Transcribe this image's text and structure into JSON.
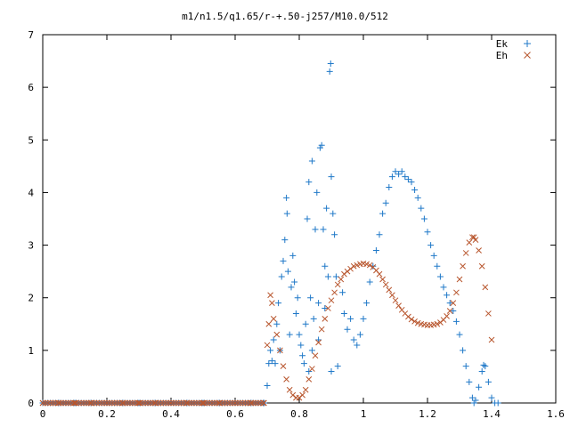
{
  "chart_data": {
    "type": "scatter",
    "title": "m1/n1.5/q1.65/r-+.50-j257/M10.0/512",
    "xlabel": "",
    "ylabel": "",
    "xlim": [
      0,
      1.6
    ],
    "ylim": [
      0,
      7
    ],
    "grid": false,
    "legend_position": "top-right",
    "x_ticks": [
      "0",
      "0.2",
      "0.4",
      "0.6",
      "0.8",
      "1",
      "1.2",
      "1.4",
      "1.6"
    ],
    "y_ticks": [
      "0",
      "1",
      "2",
      "3",
      "4",
      "5",
      "6",
      "7"
    ],
    "series": [
      {
        "name": "Ek",
        "marker": "plus",
        "color": "#1f78c8",
        "points": [
          [
            0.0,
            0
          ],
          [
            0.05,
            0
          ],
          [
            0.1,
            0
          ],
          [
            0.15,
            0
          ],
          [
            0.2,
            0
          ],
          [
            0.25,
            0
          ],
          [
            0.3,
            0
          ],
          [
            0.35,
            0
          ],
          [
            0.4,
            0
          ],
          [
            0.45,
            0
          ],
          [
            0.5,
            0
          ],
          [
            0.55,
            0
          ],
          [
            0.6,
            0
          ],
          [
            0.65,
            0
          ],
          [
            0.69,
            0
          ],
          [
            0.7,
            0.33
          ],
          [
            0.705,
            0.75
          ],
          [
            0.71,
            1.0
          ],
          [
            0.715,
            0.8
          ],
          [
            0.72,
            1.2
          ],
          [
            0.725,
            0.75
          ],
          [
            0.73,
            1.5
          ],
          [
            0.735,
            1.9
          ],
          [
            0.74,
            1.0
          ],
          [
            0.745,
            2.4
          ],
          [
            0.75,
            2.7
          ],
          [
            0.755,
            3.1
          ],
          [
            0.76,
            3.9
          ],
          [
            0.762,
            3.6
          ],
          [
            0.765,
            2.5
          ],
          [
            0.77,
            1.3
          ],
          [
            0.775,
            2.2
          ],
          [
            0.78,
            2.8
          ],
          [
            0.785,
            2.3
          ],
          [
            0.79,
            1.7
          ],
          [
            0.795,
            2.0
          ],
          [
            0.8,
            1.3
          ],
          [
            0.805,
            1.1
          ],
          [
            0.81,
            0.9
          ],
          [
            0.815,
            0.75
          ],
          [
            0.82,
            1.5
          ],
          [
            0.825,
            3.5
          ],
          [
            0.83,
            4.2
          ],
          [
            0.835,
            2.0
          ],
          [
            0.84,
            4.6
          ],
          [
            0.845,
            1.6
          ],
          [
            0.85,
            3.3
          ],
          [
            0.855,
            4.0
          ],
          [
            0.86,
            1.9
          ],
          [
            0.865,
            4.85
          ],
          [
            0.87,
            4.9
          ],
          [
            0.875,
            3.3
          ],
          [
            0.88,
            2.6
          ],
          [
            0.885,
            3.7
          ],
          [
            0.89,
            2.4
          ],
          [
            0.895,
            6.3
          ],
          [
            0.898,
            6.45
          ],
          [
            0.9,
            4.3
          ],
          [
            0.905,
            3.6
          ],
          [
            0.91,
            3.2
          ],
          [
            0.915,
            2.4
          ],
          [
            0.83,
            0.6
          ],
          [
            0.84,
            1.0
          ],
          [
            0.86,
            1.2
          ],
          [
            0.88,
            1.8
          ],
          [
            0.9,
            0.6
          ],
          [
            0.92,
            0.7
          ],
          [
            0.935,
            2.1
          ],
          [
            0.94,
            1.7
          ],
          [
            0.95,
            1.4
          ],
          [
            0.96,
            1.6
          ],
          [
            0.97,
            1.2
          ],
          [
            0.98,
            1.1
          ],
          [
            0.99,
            1.3
          ],
          [
            1.0,
            1.6
          ],
          [
            1.01,
            1.9
          ],
          [
            1.02,
            2.3
          ],
          [
            1.03,
            2.6
          ],
          [
            1.04,
            2.9
          ],
          [
            1.05,
            3.2
          ],
          [
            1.06,
            3.6
          ],
          [
            1.07,
            3.8
          ],
          [
            1.08,
            4.1
          ],
          [
            1.09,
            4.3
          ],
          [
            1.1,
            4.4
          ],
          [
            1.11,
            4.35
          ],
          [
            1.12,
            4.4
          ],
          [
            1.13,
            4.3
          ],
          [
            1.14,
            4.25
          ],
          [
            1.15,
            4.2
          ],
          [
            1.16,
            4.05
          ],
          [
            1.17,
            3.9
          ],
          [
            1.18,
            3.7
          ],
          [
            1.19,
            3.5
          ],
          [
            1.2,
            3.25
          ],
          [
            1.21,
            3.0
          ],
          [
            1.22,
            2.8
          ],
          [
            1.23,
            2.6
          ],
          [
            1.24,
            2.4
          ],
          [
            1.25,
            2.2
          ],
          [
            1.26,
            2.05
          ],
          [
            1.27,
            1.9
          ],
          [
            1.28,
            1.75
          ],
          [
            1.29,
            1.55
          ],
          [
            1.3,
            1.3
          ],
          [
            1.31,
            1.0
          ],
          [
            1.32,
            0.7
          ],
          [
            1.33,
            0.4
          ],
          [
            1.34,
            0.1
          ],
          [
            1.345,
            0
          ],
          [
            1.35,
            0.05
          ],
          [
            1.36,
            0.3
          ],
          [
            1.37,
            0.6
          ],
          [
            1.375,
            0.72
          ],
          [
            1.38,
            0.7
          ],
          [
            1.39,
            0.4
          ],
          [
            1.4,
            0.1
          ],
          [
            1.41,
            0
          ],
          [
            1.42,
            0
          ]
        ]
      },
      {
        "name": "Eh",
        "marker": "cross",
        "color": "#b8562e",
        "points": [
          [
            0.0,
            0
          ],
          [
            0.05,
            0
          ],
          [
            0.1,
            0
          ],
          [
            0.15,
            0
          ],
          [
            0.2,
            0
          ],
          [
            0.25,
            0
          ],
          [
            0.3,
            0
          ],
          [
            0.35,
            0
          ],
          [
            0.4,
            0
          ],
          [
            0.45,
            0
          ],
          [
            0.5,
            0
          ],
          [
            0.55,
            0
          ],
          [
            0.6,
            0
          ],
          [
            0.65,
            0
          ],
          [
            0.69,
            0
          ],
          [
            0.7,
            1.1
          ],
          [
            0.705,
            1.5
          ],
          [
            0.71,
            2.05
          ],
          [
            0.715,
            1.9
          ],
          [
            0.72,
            1.6
          ],
          [
            0.73,
            1.3
          ],
          [
            0.74,
            1.0
          ],
          [
            0.75,
            0.7
          ],
          [
            0.76,
            0.45
          ],
          [
            0.77,
            0.25
          ],
          [
            0.78,
            0.15
          ],
          [
            0.79,
            0.1
          ],
          [
            0.8,
            0.1
          ],
          [
            0.81,
            0.15
          ],
          [
            0.82,
            0.25
          ],
          [
            0.83,
            0.45
          ],
          [
            0.84,
            0.65
          ],
          [
            0.85,
            0.9
          ],
          [
            0.86,
            1.15
          ],
          [
            0.87,
            1.4
          ],
          [
            0.88,
            1.6
          ],
          [
            0.89,
            1.8
          ],
          [
            0.9,
            1.95
          ],
          [
            0.91,
            2.1
          ],
          [
            0.92,
            2.25
          ],
          [
            0.93,
            2.35
          ],
          [
            0.94,
            2.45
          ],
          [
            0.95,
            2.5
          ],
          [
            0.96,
            2.55
          ],
          [
            0.97,
            2.6
          ],
          [
            0.98,
            2.62
          ],
          [
            0.99,
            2.64
          ],
          [
            1.0,
            2.65
          ],
          [
            1.01,
            2.64
          ],
          [
            1.02,
            2.62
          ],
          [
            1.03,
            2.58
          ],
          [
            1.04,
            2.52
          ],
          [
            1.05,
            2.45
          ],
          [
            1.06,
            2.35
          ],
          [
            1.07,
            2.25
          ],
          [
            1.08,
            2.15
          ],
          [
            1.09,
            2.05
          ],
          [
            1.1,
            1.95
          ],
          [
            1.11,
            1.85
          ],
          [
            1.12,
            1.77
          ],
          [
            1.13,
            1.7
          ],
          [
            1.14,
            1.64
          ],
          [
            1.15,
            1.59
          ],
          [
            1.16,
            1.55
          ],
          [
            1.17,
            1.52
          ],
          [
            1.18,
            1.5
          ],
          [
            1.19,
            1.49
          ],
          [
            1.2,
            1.48
          ],
          [
            1.21,
            1.48
          ],
          [
            1.22,
            1.49
          ],
          [
            1.23,
            1.5
          ],
          [
            1.24,
            1.53
          ],
          [
            1.25,
            1.58
          ],
          [
            1.26,
            1.65
          ],
          [
            1.27,
            1.75
          ],
          [
            1.28,
            1.9
          ],
          [
            1.29,
            2.1
          ],
          [
            1.3,
            2.35
          ],
          [
            1.31,
            2.6
          ],
          [
            1.32,
            2.85
          ],
          [
            1.33,
            3.05
          ],
          [
            1.34,
            3.15
          ],
          [
            1.345,
            3.15
          ],
          [
            1.35,
            3.1
          ],
          [
            1.36,
            2.9
          ],
          [
            1.37,
            2.6
          ],
          [
            1.38,
            2.2
          ],
          [
            1.39,
            1.7
          ],
          [
            1.4,
            1.2
          ]
        ]
      }
    ]
  }
}
